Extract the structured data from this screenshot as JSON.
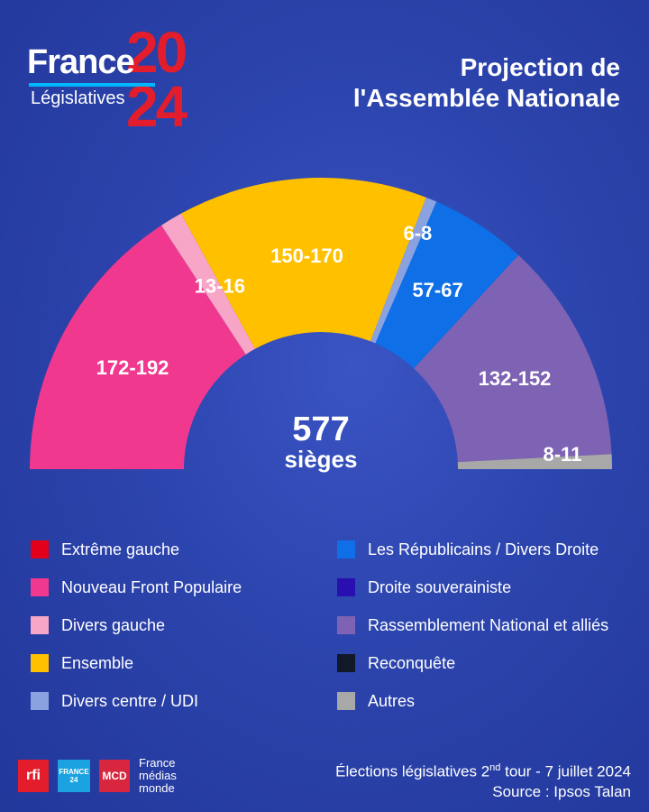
{
  "brand": {
    "word": "France",
    "year_top": "20",
    "year_bottom": "24",
    "subtitle": "Législatives"
  },
  "title": {
    "line1": "Projection de",
    "line2": "l'Assemblée Nationale"
  },
  "chart_data": {
    "type": "pie",
    "layout": "half-donut",
    "total": 577,
    "center_value": "577",
    "center_unit": "sièges",
    "segments": [
      {
        "label": "172-192",
        "min": 172,
        "max": 192,
        "party": "Nouveau Front Populaire",
        "color": "#f0388e"
      },
      {
        "label": "13-16",
        "min": 13,
        "max": 16,
        "party": "Divers gauche",
        "color": "#f7a6c7"
      },
      {
        "label": "150-170",
        "min": 150,
        "max": 170,
        "party": "Ensemble",
        "color": "#ffc000"
      },
      {
        "label": "6-8",
        "min": 6,
        "max": 8,
        "party": "Divers centre / UDI",
        "color": "#8aa2e0"
      },
      {
        "label": "57-67",
        "min": 57,
        "max": 67,
        "party": "Les Républicains / Divers Droite",
        "color": "#0f6fe6"
      },
      {
        "label": "132-152",
        "min": 132,
        "max": 152,
        "party": "Rassemblement National et alliés",
        "color": "#7e62b3"
      },
      {
        "label": "8-11",
        "min": 8,
        "max": 11,
        "party": "Autres",
        "color": "#a8a8a8"
      }
    ]
  },
  "legend": {
    "left": [
      {
        "label": "Extrême gauche",
        "color": "#e3001b"
      },
      {
        "label": "Nouveau Front Populaire",
        "color": "#f0388e"
      },
      {
        "label": "Divers gauche",
        "color": "#f7a6c7"
      },
      {
        "label": "Ensemble",
        "color": "#ffc000"
      },
      {
        "label": "Divers centre / UDI",
        "color": "#8aa2e0"
      }
    ],
    "right": [
      {
        "label": "Les Républicains / Divers Droite",
        "color": "#0f6fe6"
      },
      {
        "label": "Droite souverainiste",
        "color": "#2a0fb0"
      },
      {
        "label": "Rassemblement National et alliés",
        "color": "#7e62b3"
      },
      {
        "label": "Reconquête",
        "color": "#111827"
      },
      {
        "label": "Autres",
        "color": "#a8a8a8"
      }
    ]
  },
  "footer": {
    "line1_main": "Élections législatives 2",
    "line1_sup": "nd",
    "line1_rest": " tour - 7 juillet 2024",
    "line2": "Source : Ipsos Talan",
    "logos": {
      "rfi": "rfi",
      "f24": "FRANCE 24",
      "mcd": "MCD",
      "fmm_1": "France",
      "fmm_2": "médias",
      "fmm_3": "monde"
    }
  }
}
